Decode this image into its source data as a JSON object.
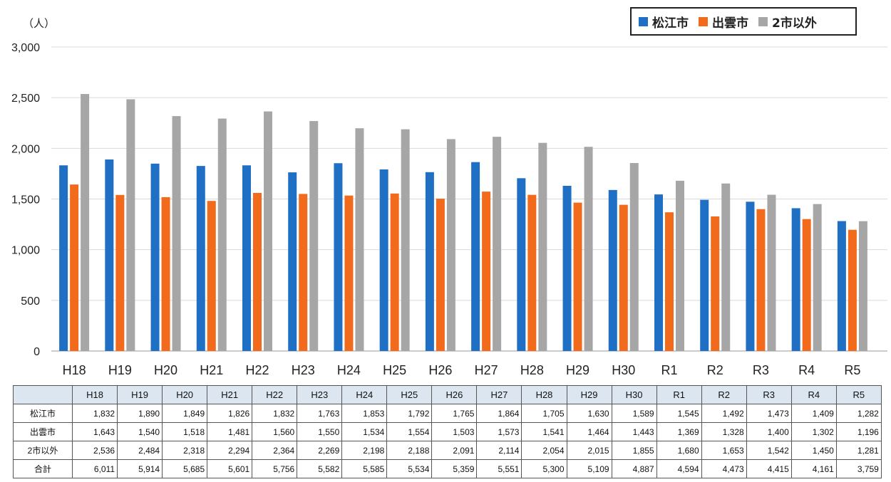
{
  "chart_data": {
    "type": "bar",
    "unit_label": "（人）",
    "categories": [
      "H18",
      "H19",
      "H20",
      "H21",
      "H22",
      "H23",
      "H24",
      "H25",
      "H26",
      "H27",
      "H28",
      "H29",
      "H30",
      "R1",
      "R2",
      "R3",
      "R4",
      "R5"
    ],
    "series": [
      {
        "name": "松江市",
        "color": "#1f6fc4",
        "values": [
          1832,
          1890,
          1849,
          1826,
          1832,
          1763,
          1853,
          1792,
          1765,
          1864,
          1705,
          1630,
          1589,
          1545,
          1492,
          1473,
          1409,
          1282
        ]
      },
      {
        "name": "出雲市",
        "color": "#f26b1d",
        "values": [
          1643,
          1540,
          1518,
          1481,
          1560,
          1550,
          1534,
          1554,
          1503,
          1573,
          1541,
          1464,
          1443,
          1369,
          1328,
          1400,
          1302,
          1196
        ]
      },
      {
        "name": "2市以外",
        "color": "#a6a6a6",
        "values": [
          2536,
          2484,
          2318,
          2294,
          2364,
          2269,
          2198,
          2188,
          2091,
          2114,
          2054,
          2015,
          1855,
          1680,
          1653,
          1542,
          1450,
          1281
        ]
      }
    ],
    "ylim": [
      0,
      3000
    ],
    "yticks": [
      "0",
      "500",
      "1,000",
      "1,500",
      "2,000",
      "2,500",
      "3,000"
    ],
    "grid": true,
    "legend_position": "top-right",
    "table": {
      "row_labels": [
        "松江市",
        "出雲市",
        "2市以外",
        "合計"
      ],
      "rows": [
        [
          "1,832",
          "1,890",
          "1,849",
          "1,826",
          "1,832",
          "1,763",
          "1,853",
          "1,792",
          "1,765",
          "1,864",
          "1,705",
          "1,630",
          "1,589",
          "1,545",
          "1,492",
          "1,473",
          "1,409",
          "1,282"
        ],
        [
          "1,643",
          "1,540",
          "1,518",
          "1,481",
          "1,560",
          "1,550",
          "1,534",
          "1,554",
          "1,503",
          "1,573",
          "1,541",
          "1,464",
          "1,443",
          "1,369",
          "1,328",
          "1,400",
          "1,302",
          "1,196"
        ],
        [
          "2,536",
          "2,484",
          "2,318",
          "2,294",
          "2,364",
          "2,269",
          "2,198",
          "2,188",
          "2,091",
          "2,114",
          "2,054",
          "2,015",
          "1,855",
          "1,680",
          "1,653",
          "1,542",
          "1,450",
          "1,281"
        ],
        [
          "6,011",
          "5,914",
          "5,685",
          "5,601",
          "5,756",
          "5,582",
          "5,585",
          "5,534",
          "5,359",
          "5,551",
          "5,300",
          "5,109",
          "4,887",
          "4,594",
          "4,473",
          "4,415",
          "4,161",
          "3,759"
        ]
      ]
    }
  }
}
